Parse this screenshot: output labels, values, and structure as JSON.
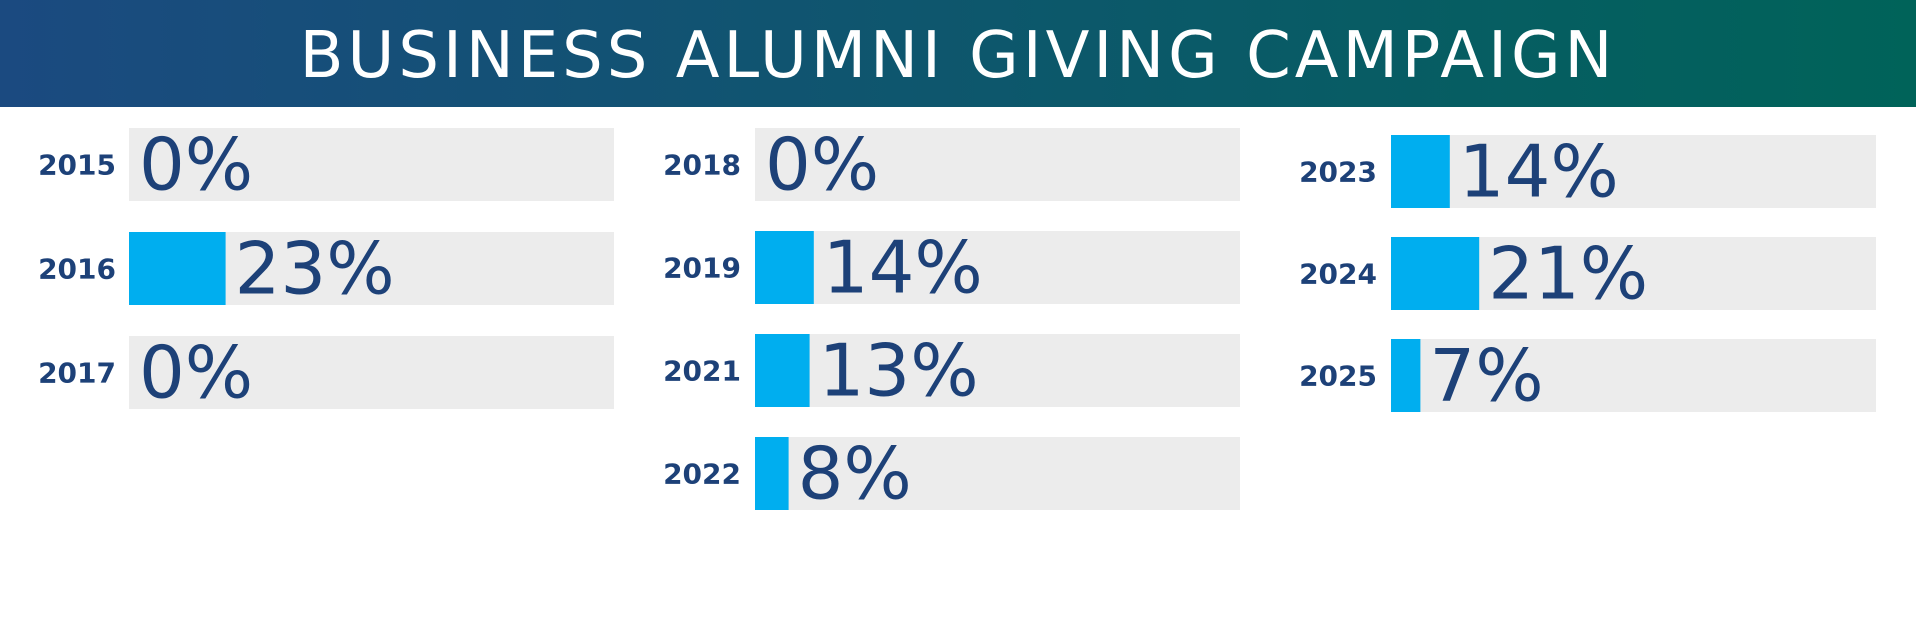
{
  "colors": {
    "banner_start": "#1b4a80",
    "banner_end": "#006359",
    "bar_fill": "#00aeef",
    "track": "#ececec",
    "text": "#1d4178"
  },
  "header": {
    "title": "BUSINESS ALUMNI GIVING CAMPAIGN"
  },
  "chart_data": {
    "type": "bar",
    "orientation": "horizontal",
    "xlim": [
      0,
      100
    ],
    "grid": false,
    "legend": "none",
    "columns": [
      {
        "categories": [
          "2015",
          "2016",
          "2017"
        ],
        "values": [
          0,
          23,
          0
        ],
        "labels": [
          "0%",
          "23%",
          "0%"
        ]
      },
      {
        "categories": [
          "2018",
          "2019",
          "2021",
          "2022"
        ],
        "values": [
          0,
          14,
          13,
          8
        ],
        "labels": [
          "0%",
          "14%",
          "13%",
          "8%"
        ]
      },
      {
        "categories": [
          "2023",
          "2024",
          "2025"
        ],
        "values": [
          14,
          21,
          7
        ],
        "labels": [
          "14%",
          "21%",
          "7%"
        ]
      }
    ]
  }
}
